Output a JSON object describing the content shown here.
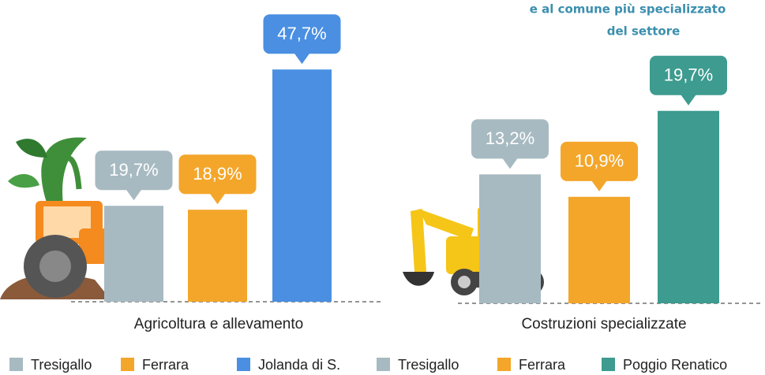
{
  "header_lines": [
    "e al comune più specializzato",
    "del settore"
  ],
  "chart_data": [
    {
      "type": "bar",
      "xlabel": "Agricoltura e allevamento",
      "categories": [
        "Tresigallo",
        "Ferrara",
        "Jolanda di S."
      ],
      "values": [
        19.7,
        18.9,
        47.7
      ],
      "value_labels": [
        "19,7%",
        "18,9%",
        "47,7%"
      ],
      "colors": [
        "#a7bac1",
        "#f4a62a",
        "#4a8fe2"
      ]
    },
    {
      "type": "bar",
      "xlabel": "Costruzioni specializzate",
      "categories": [
        "Tresigallo",
        "Ferrara",
        "Poggio Renatico"
      ],
      "values": [
        13.2,
        10.9,
        19.7
      ],
      "value_labels": [
        "13,2%",
        "10,9%",
        "19,7%"
      ],
      "colors": [
        "#a7bac1",
        "#f4a62a",
        "#3d9b8f"
      ]
    }
  ]
}
